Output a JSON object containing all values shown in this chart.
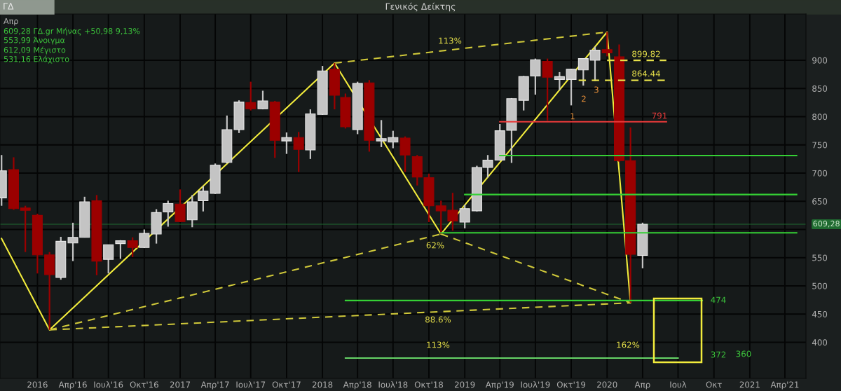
{
  "chart_data": {
    "type": "candlestick",
    "title": "Γενικός Δείκτης",
    "subtitle": "ΓΔ",
    "x": [
      "2015-10",
      "2015-11",
      "2015-12",
      "2016-01",
      "2016-02",
      "2016-03",
      "2016-04",
      "2016-05",
      "2016-06",
      "2016-07",
      "2016-08",
      "2016-09",
      "2016-10",
      "2016-11",
      "2016-12",
      "2017-01",
      "2017-02",
      "2017-03",
      "2017-04",
      "2017-05",
      "2017-06",
      "2017-07",
      "2017-08",
      "2017-09",
      "2017-10",
      "2017-11",
      "2017-12",
      "2018-01",
      "2018-02",
      "2018-03",
      "2018-04",
      "2018-05",
      "2018-06",
      "2018-07",
      "2018-08",
      "2018-09",
      "2018-10",
      "2018-11",
      "2018-12",
      "2019-01",
      "2019-02",
      "2019-03",
      "2019-04",
      "2019-05",
      "2019-06",
      "2019-07",
      "2019-08",
      "2019-09",
      "2019-10",
      "2019-11",
      "2019-12",
      "2020-01",
      "2020-02",
      "2020-03",
      "2020-04"
    ],
    "ohlc": [
      [
        656,
        732,
        642,
        704
      ],
      [
        706,
        728,
        635,
        637
      ],
      [
        638,
        642,
        560,
        634
      ],
      [
        625,
        628,
        522,
        555
      ],
      [
        555,
        560,
        422,
        520
      ],
      [
        515,
        587,
        511,
        579
      ],
      [
        576,
        612,
        544,
        586
      ],
      [
        586,
        658,
        586,
        649
      ],
      [
        651,
        661,
        519,
        544
      ],
      [
        547,
        573,
        522,
        573
      ],
      [
        575,
        581,
        548,
        580
      ],
      [
        580,
        586,
        551,
        568
      ],
      [
        568,
        600,
        567,
        593
      ],
      [
        592,
        636,
        575,
        630
      ],
      [
        631,
        651,
        605,
        646
      ],
      [
        645,
        671,
        613,
        614
      ],
      [
        617,
        661,
        604,
        649
      ],
      [
        651,
        677,
        632,
        668
      ],
      [
        664,
        717,
        663,
        714
      ],
      [
        719,
        802,
        717,
        777
      ],
      [
        777,
        829,
        771,
        826
      ],
      [
        825,
        862,
        811,
        814
      ],
      [
        814,
        846,
        813,
        828
      ],
      [
        826,
        828,
        727,
        758
      ],
      [
        757,
        772,
        734,
        763
      ],
      [
        763,
        773,
        702,
        742
      ],
      [
        741,
        813,
        725,
        805
      ],
      [
        804,
        890,
        803,
        881
      ],
      [
        884,
        895,
        813,
        838
      ],
      [
        834,
        841,
        779,
        782
      ],
      [
        777,
        862,
        769,
        859
      ],
      [
        860,
        865,
        738,
        758
      ],
      [
        757,
        794,
        746,
        761
      ],
      [
        755,
        775,
        744,
        763
      ],
      [
        762,
        765,
        702,
        732
      ],
      [
        729,
        732,
        678,
        693
      ],
      [
        692,
        699,
        613,
        642
      ],
      [
        642,
        651,
        592,
        633
      ],
      [
        634,
        665,
        598,
        615
      ],
      [
        613,
        644,
        602,
        637
      ],
      [
        633,
        713,
        632,
        710
      ],
      [
        710,
        732,
        692,
        723
      ],
      [
        723,
        787,
        722,
        775
      ],
      [
        776,
        833,
        718,
        832
      ],
      [
        829,
        872,
        811,
        871
      ],
      [
        872,
        903,
        839,
        901
      ],
      [
        898,
        903,
        793,
        870
      ],
      [
        866,
        879,
        847,
        871
      ],
      [
        866,
        885,
        820,
        884
      ],
      [
        883,
        903,
        855,
        903
      ],
      [
        900,
        924,
        863,
        918
      ],
      [
        919,
        950,
        907,
        913
      ],
      [
        906,
        928,
        720,
        722
      ],
      [
        722,
        781,
        470,
        556
      ],
      [
        553.99,
        612.09,
        531.16,
        609.28
      ]
    ],
    "colors": [
      "#c4c4c4",
      "#9b0000",
      "#9b0000",
      "#9b0000",
      "#9b0000",
      "#c4c4c4",
      "#c4c4c4",
      "#c4c4c4",
      "#9b0000",
      "#c4c4c4",
      "#c4c4c4",
      "#9b0000",
      "#c4c4c4",
      "#c4c4c4",
      "#c4c4c4",
      "#9b0000",
      "#c4c4c4",
      "#c4c4c4",
      "#c4c4c4",
      "#c4c4c4",
      "#c4c4c4",
      "#9b0000",
      "#c4c4c4",
      "#9b0000",
      "#c4c4c4",
      "#9b0000",
      "#c4c4c4",
      "#c4c4c4",
      "#9b0000",
      "#9b0000",
      "#c4c4c4",
      "#9b0000",
      "#c4c4c4",
      "#c4c4c4",
      "#9b0000",
      "#9b0000",
      "#9b0000",
      "#9b0000",
      "#9b0000",
      "#c4c4c4",
      "#c4c4c4",
      "#c4c4c4",
      "#c4c4c4",
      "#c4c4c4",
      "#c4c4c4",
      "#c4c4c4",
      "#9b0000",
      "#c4c4c4",
      "#c4c4c4",
      "#c4c4c4",
      "#c4c4c4",
      "#9b0000",
      "#9b0000",
      "#9b0000",
      "#c4c4c4"
    ],
    "series": [
      {
        "type": "line",
        "color": "#f2ec3c",
        "line_style": "solid",
        "x": [
          "2015-10",
          "2016-02",
          "2018-02",
          "2018-11",
          "2020-01",
          "2020-03"
        ],
        "values": [
          584,
          422,
          895,
          592,
          950,
          470
        ]
      },
      {
        "type": "line",
        "color": "#cfc83a",
        "line_style": "dashed",
        "x": [
          "2016-02",
          "2018-11"
        ],
        "values": [
          422,
          592
        ]
      },
      {
        "type": "line",
        "color": "#cfc83a",
        "line_style": "dashed",
        "x": [
          "2016-02",
          "2020-03"
        ],
        "values": [
          422,
          470
        ]
      },
      {
        "type": "line",
        "color": "#cfc83a",
        "line_style": "dashed",
        "x": [
          "2018-11",
          "2020-03"
        ],
        "values": [
          592,
          470
        ]
      },
      {
        "type": "line",
        "color": "#cfc83a",
        "line_style": "dashed",
        "x": [
          "2018-02",
          "2020-01"
        ],
        "values": [
          895,
          950
        ]
      },
      {
        "type": "line",
        "color": "#e6e04a",
        "line_style": "dashed",
        "x": [
          "2020-01",
          "2020-06"
        ],
        "values": [
          899.82,
          899.82
        ]
      },
      {
        "type": "line",
        "color": "#e6e04a",
        "line_style": "dashed",
        "x": [
          "2019-10-20",
          "2020-06"
        ],
        "values": [
          864.44,
          864.44
        ]
      },
      {
        "type": "line",
        "color": "#e83a3a",
        "line_style": "solid",
        "x": [
          "2019-04",
          "2020-06"
        ],
        "values": [
          791,
          791
        ]
      },
      {
        "type": "line",
        "color": "#35d035",
        "line_style": "solid",
        "x": [
          "2019-04",
          "2021-05"
        ],
        "values": [
          731,
          731
        ]
      },
      {
        "type": "line",
        "color": "#35d035",
        "line_style": "solid",
        "x": [
          "2019-01",
          "2021-05"
        ],
        "values": [
          662,
          662
        ]
      },
      {
        "type": "line",
        "color": "#35d035",
        "line_style": "solid",
        "x": [
          "2018-11",
          "2021-05"
        ],
        "values": [
          594,
          594
        ]
      },
      {
        "type": "line",
        "color": "#35d035",
        "line_style": "solid",
        "x": [
          "2018-03",
          "2020-09"
        ],
        "values": [
          474,
          474
        ]
      },
      {
        "type": "line",
        "color": "#66d466",
        "line_style": "solid",
        "x": [
          "2018-03",
          "2020-07"
        ],
        "values": [
          372,
          372
        ]
      }
    ],
    "ref_lines": [
      {
        "axis": "y",
        "value": 609.28,
        "label": "609,28",
        "color": "#1f6b30"
      }
    ],
    "annotations": [
      "Απρ",
      "609,28 ΓΔ.gr Μήνας +50,98 9,13%",
      "553,99 Άνοιγμα",
      "612,09 Μέγιστο",
      "531,16 Ελάχιστο",
      "899.82",
      "864.44",
      "791",
      "1",
      "2",
      "3",
      "474",
      "372",
      "360",
      "113%",
      "62%",
      "88.6%",
      "113%",
      "162%"
    ],
    "xlim": [
      "2015-09-27",
      "2021-05-25"
    ],
    "xticks": [
      {
        "value": "2016-01",
        "label": "2016"
      },
      {
        "value": "2016-04",
        "label": "Απρ'16"
      },
      {
        "value": "2016-07",
        "label": "Ιουλ'16"
      },
      {
        "value": "2016-10",
        "label": "Οκτ'16"
      },
      {
        "value": "2017-01",
        "label": "2017"
      },
      {
        "value": "2017-04",
        "label": "Απρ'17"
      },
      {
        "value": "2017-07",
        "label": "Ιουλ'17"
      },
      {
        "value": "2017-10",
        "label": "Οκτ'17"
      },
      {
        "value": "2018-01",
        "label": "2018"
      },
      {
        "value": "2018-04",
        "label": "Απρ'18"
      },
      {
        "value": "2018-07",
        "label": "Ιουλ'18"
      },
      {
        "value": "2018-10",
        "label": "Οκτ'18"
      },
      {
        "value": "2019-01",
        "label": "2019"
      },
      {
        "value": "2019-04",
        "label": "Απρ'19"
      },
      {
        "value": "2019-07",
        "label": "Ιουλ'19"
      },
      {
        "value": "2019-10",
        "label": "Οκτ'19"
      },
      {
        "value": "2020-01",
        "label": "2020"
      },
      {
        "value": "2020-04",
        "label": "Απρ"
      },
      {
        "value": "2020-07",
        "label": "Ιουλ"
      },
      {
        "value": "2020-10",
        "label": "Οκτ"
      },
      {
        "value": "2021-01",
        "label": "2021"
      },
      {
        "value": "2021-04",
        "label": "Απρ'21"
      }
    ],
    "ylim": [
      336,
      982
    ],
    "yticks": [
      400,
      450,
      500,
      550,
      {
        "value": 600,
        "label": null
      },
      650,
      700,
      750,
      800,
      850,
      900
    ],
    "grid": true
  }
}
